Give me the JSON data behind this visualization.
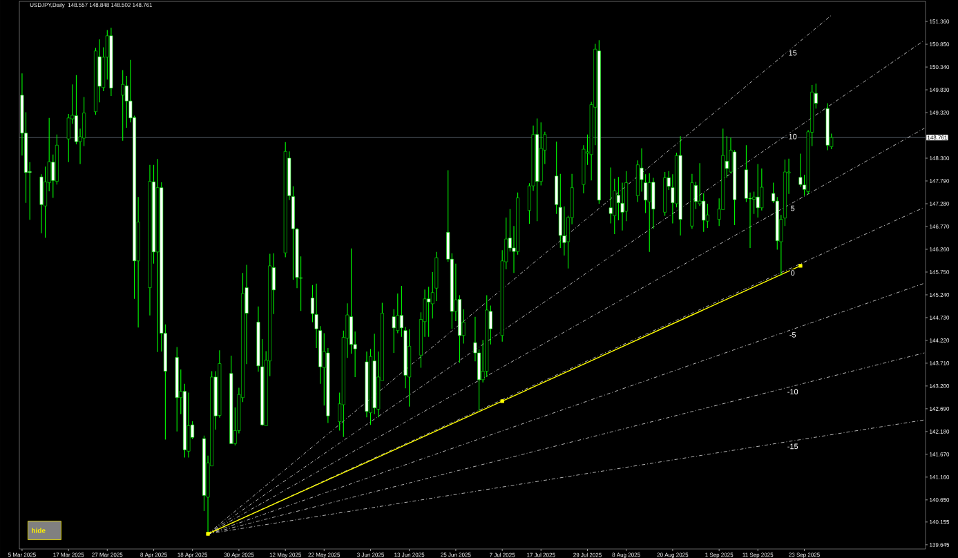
{
  "chart_data": {
    "type": "candlestick",
    "title": "USDJPY,Daily",
    "subtitle": "148.557 148.848 148.502 148.761",
    "color": "#00ff00",
    "x": [
      "2025-03-05",
      "2025-03-06",
      "2025-03-07",
      "2025-03-10",
      "2025-03-11",
      "2025-03-12",
      "2025-03-13",
      "2025-03-14",
      "2025-03-17",
      "2025-03-18",
      "2025-03-19",
      "2025-03-20",
      "2025-03-21",
      "2025-03-24",
      "2025-03-25",
      "2025-03-26",
      "2025-03-27",
      "2025-03-28",
      "2025-03-31",
      "2025-04-01",
      "2025-04-02",
      "2025-04-03",
      "2025-04-04",
      "2025-04-07",
      "2025-04-08",
      "2025-04-09",
      "2025-04-10",
      "2025-04-11",
      "2025-04-14",
      "2025-04-15",
      "2025-04-16",
      "2025-04-17",
      "2025-04-18",
      "2025-04-21",
      "2025-04-22",
      "2025-04-23",
      "2025-04-24",
      "2025-04-25",
      "2025-04-28",
      "2025-04-29",
      "2025-04-30",
      "2025-05-01",
      "2025-05-02",
      "2025-05-05",
      "2025-05-06",
      "2025-05-07",
      "2025-05-08",
      "2025-05-09",
      "2025-05-12",
      "2025-05-13",
      "2025-05-14",
      "2025-05-15",
      "2025-05-16",
      "2025-05-19",
      "2025-05-20",
      "2025-05-21",
      "2025-05-22",
      "2025-05-23",
      "2025-05-26",
      "2025-05-27",
      "2025-05-28",
      "2025-05-29",
      "2025-05-30",
      "2025-06-02",
      "2025-06-03",
      "2025-06-04",
      "2025-06-05",
      "2025-06-06",
      "2025-06-09",
      "2025-06-10",
      "2025-06-11",
      "2025-06-12",
      "2025-06-13",
      "2025-06-16",
      "2025-06-17",
      "2025-06-18",
      "2025-06-19",
      "2025-06-20",
      "2025-06-23",
      "2025-06-24",
      "2025-06-25",
      "2025-06-26",
      "2025-06-27",
      "2025-06-30",
      "2025-07-01",
      "2025-07-02",
      "2025-07-03",
      "2025-07-04",
      "2025-07-07",
      "2025-07-08",
      "2025-07-09",
      "2025-07-10",
      "2025-07-11",
      "2025-07-14",
      "2025-07-15",
      "2025-07-16",
      "2025-07-17",
      "2025-07-18",
      "2025-07-21",
      "2025-07-22",
      "2025-07-23",
      "2025-07-24",
      "2025-07-25",
      "2025-07-28",
      "2025-07-29",
      "2025-07-30",
      "2025-07-31",
      "2025-08-01",
      "2025-08-04",
      "2025-08-05",
      "2025-08-06",
      "2025-08-07",
      "2025-08-08",
      "2025-08-11",
      "2025-08-12",
      "2025-08-13",
      "2025-08-14",
      "2025-08-15",
      "2025-08-18",
      "2025-08-19",
      "2025-08-20",
      "2025-08-21",
      "2025-08-22",
      "2025-08-25",
      "2025-08-26",
      "2025-08-27",
      "2025-08-28",
      "2025-08-29",
      "2025-09-01",
      "2025-09-02",
      "2025-09-03",
      "2025-09-04",
      "2025-09-05",
      "2025-09-08",
      "2025-09-09",
      "2025-09-10",
      "2025-09-11",
      "2025-09-12",
      "2025-09-15",
      "2025-09-16",
      "2025-09-17",
      "2025-09-18",
      "2025-09-19",
      "2025-09-22",
      "2025-09-23",
      "2025-09-24",
      "2025-09-25",
      "2025-09-26",
      "2025-09-29",
      "2025-09-30"
    ],
    "ohlc": [
      [
        149.71,
        150.2,
        148.36,
        148.86
      ],
      [
        148.86,
        149.33,
        147.3,
        147.98
      ],
      [
        148.0,
        148.21,
        146.92,
        147.98
      ],
      [
        147.88,
        147.94,
        146.62,
        147.26
      ],
      [
        147.23,
        148.11,
        146.52,
        147.77
      ],
      [
        147.75,
        149.2,
        147.56,
        148.22
      ],
      [
        148.21,
        148.38,
        147.41,
        147.8
      ],
      [
        147.78,
        148.83,
        147.71,
        148.59
      ],
      [
        148.73,
        149.29,
        148.21,
        149.2
      ],
      [
        149.18,
        149.95,
        149.07,
        149.26
      ],
      [
        149.25,
        150.16,
        148.61,
        148.67
      ],
      [
        148.67,
        148.96,
        148.17,
        148.78
      ],
      [
        148.75,
        149.67,
        148.57,
        149.31
      ],
      [
        149.34,
        150.77,
        149.27,
        150.7
      ],
      [
        150.57,
        150.96,
        149.55,
        149.91
      ],
      [
        149.88,
        150.78,
        149.8,
        150.56
      ],
      [
        150.56,
        151.17,
        150.06,
        151.04
      ],
      [
        151.04,
        151.22,
        149.69,
        149.87
      ],
      [
        149.71,
        150.27,
        148.69,
        149.95
      ],
      [
        149.92,
        150.14,
        148.98,
        149.58
      ],
      [
        149.58,
        150.5,
        149.1,
        149.2
      ],
      [
        149.21,
        149.25,
        145.15,
        146.0
      ],
      [
        146.0,
        147.43,
        144.51,
        146.87
      ],
      [
        145.4,
        148.15,
        144.78,
        147.78
      ],
      [
        147.77,
        148.15,
        145.94,
        146.2
      ],
      [
        146.2,
        148.28,
        143.96,
        147.64
      ],
      [
        147.64,
        147.76,
        143.97,
        144.38
      ],
      [
        144.38,
        144.58,
        142.0,
        143.53
      ],
      [
        143.84,
        144.07,
        142.18,
        142.94
      ],
      [
        142.94,
        143.57,
        142.57,
        143.08
      ],
      [
        143.08,
        143.25,
        141.6,
        141.77
      ],
      [
        141.74,
        143.05,
        141.6,
        142.31
      ],
      [
        142.33,
        142.41,
        142.01,
        142.05
      ],
      [
        142.02,
        142.09,
        140.4,
        140.75
      ],
      [
        140.71,
        141.64,
        139.89,
        141.48
      ],
      [
        141.41,
        143.53,
        141.41,
        143.4
      ],
      [
        143.4,
        143.53,
        142.22,
        142.53
      ],
      [
        142.54,
        144.0,
        142.49,
        143.7
      ],
      [
        143.48,
        143.88,
        141.91,
        141.91
      ],
      [
        141.91,
        142.72,
        141.87,
        142.2
      ],
      [
        142.2,
        143.16,
        142.14,
        143.01
      ],
      [
        142.94,
        145.73,
        142.84,
        145.27
      ],
      [
        145.4,
        145.91,
        143.69,
        144.83
      ],
      [
        144.63,
        144.98,
        143.52,
        143.65
      ],
      [
        143.63,
        144.25,
        142.31,
        142.33
      ],
      [
        142.31,
        143.98,
        142.31,
        143.78
      ],
      [
        143.76,
        146.16,
        143.42,
        145.89
      ],
      [
        145.85,
        146.17,
        144.81,
        145.35
      ],
      [
        146.18,
        148.66,
        146.08,
        148.45
      ],
      [
        148.3,
        148.45,
        147.36,
        147.46
      ],
      [
        147.44,
        147.67,
        145.58,
        146.72
      ],
      [
        146.71,
        146.74,
        145.39,
        145.63
      ],
      [
        145.62,
        146.1,
        144.88,
        145.61
      ],
      [
        145.17,
        145.46,
        144.63,
        144.82
      ],
      [
        144.8,
        145.49,
        144.05,
        144.48
      ],
      [
        144.44,
        144.54,
        143.25,
        143.63
      ],
      [
        143.61,
        144.38,
        142.76,
        143.97
      ],
      [
        143.94,
        144.05,
        142.37,
        142.53
      ],
      [
        142.4,
        143.05,
        142.2,
        142.8
      ],
      [
        142.78,
        144.44,
        142.06,
        144.29
      ],
      [
        144.27,
        145.05,
        143.83,
        144.79
      ],
      [
        144.75,
        146.28,
        143.92,
        144.13
      ],
      [
        144.13,
        144.42,
        143.4,
        144.03
      ],
      [
        143.74,
        143.97,
        142.5,
        142.63
      ],
      [
        142.6,
        144.03,
        142.33,
        143.86
      ],
      [
        143.76,
        144.37,
        142.57,
        142.71
      ],
      [
        142.68,
        143.97,
        142.5,
        143.4
      ],
      [
        143.32,
        145.06,
        143.32,
        144.83
      ],
      [
        144.75,
        144.92,
        143.94,
        144.5
      ],
      [
        144.44,
        145.27,
        144.38,
        144.78
      ],
      [
        144.78,
        145.44,
        144.3,
        144.5
      ],
      [
        144.44,
        144.52,
        143.15,
        143.44
      ],
      [
        143.4,
        144.47,
        142.74,
        144.09
      ],
      [
        143.89,
        144.85,
        143.61,
        144.69
      ],
      [
        144.64,
        145.36,
        144.3,
        145.15
      ],
      [
        145.15,
        145.42,
        144.3,
        145.08
      ],
      [
        145.04,
        145.75,
        144.71,
        145.29
      ],
      [
        145.39,
        146.2,
        145.1,
        146.07
      ],
      [
        146.64,
        148.03,
        145.98,
        146.04
      ],
      [
        146.04,
        146.17,
        144.48,
        144.87
      ],
      [
        144.87,
        145.94,
        144.65,
        145.13
      ],
      [
        145.14,
        145.23,
        143.72,
        144.33
      ],
      [
        144.33,
        144.92,
        144.15,
        144.63
      ],
      [
        144.17,
        144.75,
        143.75,
        143.94
      ],
      [
        143.94,
        144.02,
        142.64,
        143.34
      ],
      [
        143.34,
        144.23,
        143.28,
        143.53
      ],
      [
        143.53,
        145.23,
        143.4,
        144.9
      ],
      [
        144.87,
        145.0,
        144.13,
        144.48
      ],
      [
        144.33,
        146.24,
        144.19,
        146.0
      ],
      [
        145.98,
        146.97,
        145.81,
        146.49
      ],
      [
        146.51,
        147.16,
        146.21,
        146.29
      ],
      [
        146.29,
        146.78,
        145.73,
        146.21
      ],
      [
        146.21,
        147.53,
        146.14,
        147.41
      ],
      [
        147.13,
        147.74,
        146.83,
        147.68
      ],
      [
        147.68,
        149.03,
        147.57,
        148.83
      ],
      [
        148.83,
        149.19,
        146.89,
        147.78
      ],
      [
        147.78,
        149.1,
        147.69,
        148.52
      ],
      [
        148.48,
        148.89,
        148.17,
        148.83
      ],
      [
        147.9,
        148.67,
        147.05,
        147.26
      ],
      [
        147.2,
        147.95,
        146.29,
        146.57
      ],
      [
        146.56,
        147.22,
        146.12,
        146.41
      ],
      [
        146.43,
        147.01,
        145.83,
        146.97
      ],
      [
        146.97,
        147.95,
        146.82,
        147.64
      ],
      [
        147.71,
        148.59,
        147.51,
        148.5
      ],
      [
        148.41,
        148.83,
        148.15,
        148.44
      ],
      [
        148.38,
        149.56,
        147.8,
        149.5
      ],
      [
        149.44,
        150.86,
        148.59,
        150.74
      ],
      [
        150.7,
        150.94,
        147.28,
        147.36
      ],
      [
        147.19,
        148.09,
        146.84,
        147.06
      ],
      [
        147.01,
        147.84,
        146.6,
        147.57
      ],
      [
        147.47,
        147.88,
        146.91,
        147.3
      ],
      [
        147.29,
        147.75,
        146.68,
        147.09
      ],
      [
        147.11,
        148.01,
        146.89,
        147.75
      ],
      [
        147.46,
        148.25,
        147.32,
        148.15
      ],
      [
        148.08,
        148.52,
        147.55,
        147.82
      ],
      [
        147.75,
        147.94,
        147.07,
        147.36
      ],
      [
        147.32,
        147.96,
        146.2,
        147.75
      ],
      [
        147.76,
        147.86,
        146.72,
        147.16
      ],
      [
        147.09,
        147.99,
        147.01,
        147.86
      ],
      [
        147.86,
        148.01,
        147.59,
        147.67
      ],
      [
        147.64,
        147.94,
        146.84,
        147.3
      ],
      [
        147.28,
        148.42,
        147.2,
        148.36
      ],
      [
        148.36,
        148.79,
        146.57,
        146.93
      ],
      [
        146.78,
        147.95,
        146.72,
        147.75
      ],
      [
        147.69,
        147.77,
        147.16,
        147.33
      ],
      [
        147.28,
        148.19,
        147.23,
        147.34
      ],
      [
        147.34,
        147.51,
        146.65,
        146.91
      ],
      [
        146.89,
        147.28,
        146.74,
        147.03
      ],
      [
        146.93,
        147.4,
        146.78,
        147.16
      ],
      [
        147.15,
        148.96,
        147.15,
        148.36
      ],
      [
        148.23,
        148.79,
        147.86,
        148.07
      ],
      [
        147.99,
        148.76,
        147.96,
        148.48
      ],
      [
        148.44,
        148.48,
        146.8,
        147.37
      ],
      [
        148.04,
        148.59,
        147.32,
        147.4
      ],
      [
        147.4,
        147.53,
        146.29,
        147.39
      ],
      [
        147.38,
        147.55,
        147.05,
        147.43
      ],
      [
        147.43,
        148.17,
        146.97,
        147.19
      ],
      [
        147.19,
        148.07,
        147.13,
        147.65
      ],
      [
        147.51,
        147.75,
        147.3,
        147.34
      ],
      [
        147.34,
        147.43,
        146.25,
        146.45
      ],
      [
        146.43,
        147.03,
        145.68,
        146.93
      ],
      [
        146.96,
        148.27,
        146.78,
        147.99
      ],
      [
        147.97,
        148.29,
        147.5,
        147.99
      ],
      [
        147.87,
        148.4,
        147.66,
        147.71
      ],
      [
        147.7,
        147.93,
        147.46,
        147.6
      ],
      [
        147.55,
        148.93,
        147.5,
        148.89
      ],
      [
        148.88,
        149.94,
        148.57,
        149.78
      ],
      [
        149.75,
        149.97,
        149.41,
        149.53
      ],
      [
        149.41,
        149.53,
        148.48,
        148.59
      ],
      [
        148.557,
        148.848,
        148.502,
        148.761
      ]
    ],
    "xlim": [
      "2025-03-05",
      "2025-10-24"
    ],
    "xticks": [
      {
        "value": "2025-03-05",
        "label": "5 Mar 2025"
      },
      {
        "value": "2025-03-17",
        "label": "17 Mar 2025"
      },
      {
        "value": "2025-03-27",
        "label": "27 Mar 2025"
      },
      {
        "value": "2025-04-08",
        "label": "8 Apr 2025"
      },
      {
        "value": "2025-04-18",
        "label": "18 Apr 2025"
      },
      {
        "value": "2025-04-30",
        "label": "30 Apr 2025"
      },
      {
        "value": "2025-05-12",
        "label": "12 May 2025"
      },
      {
        "value": "2025-05-22",
        "label": "22 May 2025"
      },
      {
        "value": "2025-06-03",
        "label": "3 Jun 2025"
      },
      {
        "value": "2025-06-13",
        "label": "13 Jun 2025"
      },
      {
        "value": "2025-06-25",
        "label": "25 Jun 2025"
      },
      {
        "value": "2025-07-07",
        "label": "7 Jul 2025"
      },
      {
        "value": "2025-07-17",
        "label": "17 Jul 2025"
      },
      {
        "value": "2025-07-29",
        "label": "29 Jul 2025"
      },
      {
        "value": "2025-08-08",
        "label": "8 Aug 2025"
      },
      {
        "value": "2025-08-20",
        "label": "20 Aug 2025"
      },
      {
        "value": "2025-09-01",
        "label": "1 Sep 2025"
      },
      {
        "value": "2025-09-11",
        "label": "11 Sep 2025"
      },
      {
        "value": "2025-09-23",
        "label": "23 Sep 2025"
      }
    ],
    "ylim": [
      139.55,
      151.81
    ],
    "yticks": [
      {
        "value": 151.36,
        "label": "151.360"
      },
      {
        "value": 150.85,
        "label": "150.850"
      },
      {
        "value": 150.34,
        "label": "150.340"
      },
      {
        "value": 149.83,
        "label": "149.830"
      },
      {
        "value": 149.32,
        "label": "149.320"
      },
      {
        "value": 148.3,
        "label": "148.300"
      },
      {
        "value": 147.79,
        "label": "147.790"
      },
      {
        "value": 147.28,
        "label": "147.280"
      },
      {
        "value": 146.77,
        "label": "146.770"
      },
      {
        "value": 146.26,
        "label": "146.260"
      },
      {
        "value": 145.75,
        "label": "145.750"
      },
      {
        "value": 145.24,
        "label": "145.240"
      },
      {
        "value": 144.73,
        "label": "144.730"
      },
      {
        "value": 144.22,
        "label": "144.220"
      },
      {
        "value": 143.71,
        "label": "143.710"
      },
      {
        "value": 143.2,
        "label": "143.200"
      },
      {
        "value": 142.69,
        "label": "142.690"
      },
      {
        "value": 142.18,
        "label": "142.180"
      },
      {
        "value": 141.67,
        "label": "141.670"
      },
      {
        "value": 141.16,
        "label": "141.160"
      },
      {
        "value": 140.65,
        "label": "140.650"
      },
      140.155,
      139.645
    ],
    "series": [
      {
        "type": "line",
        "name": "15",
        "color": "#ffffff",
        "line_style": "dashed",
        "x": [
          "2025-04-22",
          "2025-09-30"
        ],
        "values": [
          139.89,
          151.5
        ]
      },
      {
        "type": "line",
        "name": "10",
        "color": "#ffffff",
        "line_style": "dashed",
        "x": [
          "2025-04-22",
          "2025-10-24"
        ],
        "values": [
          139.89,
          150.94
        ]
      },
      {
        "type": "line",
        "name": "5",
        "color": "#ffffff",
        "line_style": "dashed",
        "x": [
          "2025-04-22",
          "2025-10-24"
        ],
        "values": [
          139.89,
          148.97
        ]
      },
      {
        "type": "line",
        "name": "0",
        "color": "#ffffff",
        "line_style": "dashed",
        "x": [
          "2025-04-22",
          "2025-10-24"
        ],
        "values": [
          139.89,
          147.2
        ]
      },
      {
        "type": "line",
        "name": "-5",
        "color": "#ffffff",
        "line_style": "dashed",
        "x": [
          "2025-04-22",
          "2025-10-24"
        ],
        "values": [
          139.89,
          145.5
        ]
      },
      {
        "type": "line",
        "name": "-10",
        "color": "#ffffff",
        "line_style": "dashed",
        "x": [
          "2025-04-22",
          "2025-10-24"
        ],
        "values": [
          139.89,
          143.94
        ]
      },
      {
        "type": "line",
        "name": "-15",
        "color": "#ffffff",
        "line_style": "dashed",
        "x": [
          "2025-04-22",
          "2025-10-24"
        ],
        "values": [
          139.89,
          142.44
        ]
      },
      {
        "type": "line",
        "color": "#ffff00",
        "line_style": "solid",
        "marker": "square",
        "x": [
          "2025-04-22",
          "2025-07-07",
          "2025-09-22"
        ],
        "values": [
          139.89,
          142.86,
          145.89
        ]
      }
    ],
    "ref_lines": [
      {
        "axis": "y",
        "value": 148.761,
        "label": "148.761",
        "color": "#8a99aa"
      }
    ],
    "annotations": [
      "hide"
    ]
  }
}
